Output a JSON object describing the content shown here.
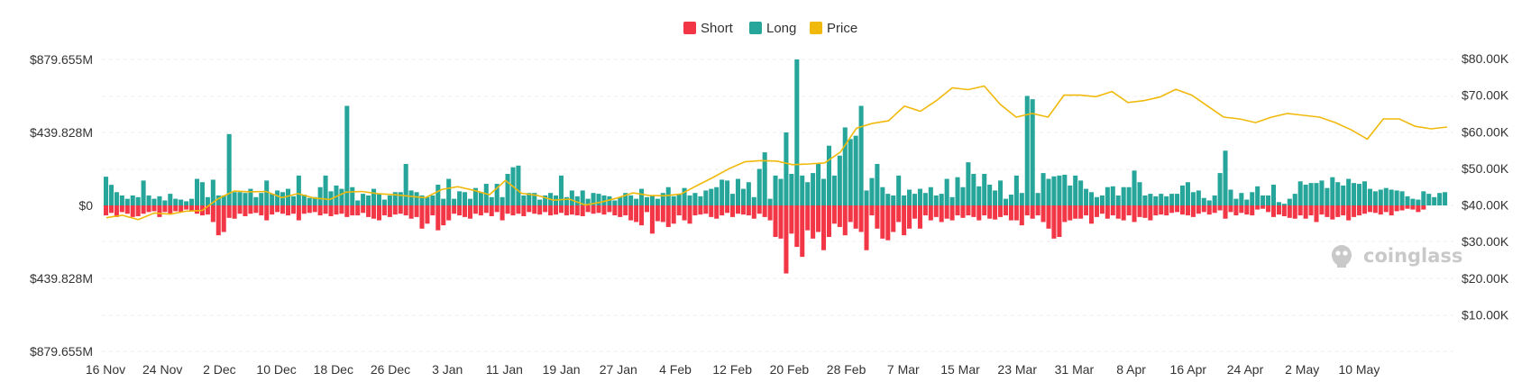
{
  "watermark": "coinglass",
  "colors": {
    "short": "#f23645",
    "long": "#26a69a",
    "price": "#f0b90b",
    "grid": "#eeeeee",
    "text": "#333333"
  },
  "chart_data": {
    "type": "bar",
    "legend": {
      "position": "top-center",
      "items": [
        "Short",
        "Long",
        "Price"
      ]
    },
    "grid": true,
    "x_tick_labels": [
      "16 Nov",
      "24 Nov",
      "2 Dec",
      "10 Dec",
      "18 Dec",
      "26 Dec",
      "3 Jan",
      "11 Jan",
      "19 Jan",
      "27 Jan",
      "4 Feb",
      "12 Feb",
      "20 Feb",
      "28 Feb",
      "7 Mar",
      "15 Mar",
      "23 Mar",
      "31 Mar",
      "8 Apr",
      "16 Apr",
      "24 Apr",
      "2 May",
      "10 May"
    ],
    "y_left": {
      "ticks": [
        "$879.655M",
        "$439.828M",
        "$0",
        "$439.828M",
        "$879.655M"
      ],
      "range_musd": [
        -879.655,
        879.655
      ]
    },
    "y_right": {
      "ticks": [
        "$80.00K",
        "$70.00K",
        "$60.00K",
        "$50.00K",
        "$40.00K",
        "$30.00K",
        "$20.00K",
        "$10.00K"
      ],
      "range_kusd": [
        0,
        80
      ]
    },
    "series": [
      {
        "name": "Long",
        "unit": "M USD",
        "values": [
          173,
          124,
          80,
          60,
          40,
          60,
          50,
          150,
          60,
          40,
          55,
          30,
          70,
          40,
          35,
          25,
          40,
          160,
          140,
          50,
          155,
          60,
          60,
          430,
          80,
          80,
          75,
          100,
          50,
          75,
          150,
          70,
          90,
          80,
          100,
          55,
          180,
          65,
          45,
          50,
          110,
          180,
          85,
          120,
          100,
          600,
          110,
          30,
          70,
          60,
          100,
          70,
          35,
          60,
          80,
          80,
          250,
          90,
          80,
          60,
          50,
          60,
          125,
          40,
          160,
          40,
          85,
          80,
          40,
          105,
          80,
          130,
          50,
          130,
          50,
          190,
          230,
          240,
          60,
          75,
          75,
          35,
          60,
          75,
          60,
          180,
          50,
          90,
          55,
          90,
          40,
          75,
          70,
          60,
          55,
          30,
          50,
          75,
          60,
          40,
          100,
          50,
          60,
          40,
          75,
          110,
          55,
          70,
          105,
          60,
          75,
          55,
          90,
          100,
          110,
          155,
          150,
          70,
          160,
          100,
          140,
          50,
          220,
          320,
          40,
          180,
          160,
          440,
          190,
          880,
          180,
          140,
          195,
          255,
          160,
          360,
          180,
          300,
          470,
          400,
          420,
          600,
          90,
          165,
          250,
          110,
          70,
          60,
          180,
          60,
          95,
          70,
          100,
          75,
          110,
          60,
          70,
          160,
          50,
          170,
          110,
          260,
          190,
          115,
          190,
          125,
          90,
          150,
          40,
          65,
          180,
          75,
          660,
          640,
          75,
          195,
          160,
          175,
          180,
          185,
          120,
          180,
          150,
          100,
          80,
          50,
          60,
          110,
          115,
          60,
          110,
          110,
          210,
          140,
          60,
          70,
          55,
          70,
          55,
          70,
          70,
          120,
          140,
          80,
          90,
          45,
          30,
          60,
          195,
          330,
          95,
          40,
          75,
          35,
          80,
          115,
          60,
          60,
          125,
          20,
          10,
          40,
          70,
          145,
          125,
          135,
          135,
          150,
          105,
          170,
          140,
          120,
          160,
          135,
          130,
          145,
          100,
          85,
          95,
          105,
          95,
          90,
          85,
          55,
          40,
          35,
          85,
          70,
          50,
          75,
          80
        ],
        "note": "Long values reconstructed from bar heights; approx"
      },
      {
        "name": "Short",
        "unit": "M USD",
        "values": [
          60,
          45,
          70,
          40,
          50,
          70,
          65,
          50,
          40,
          35,
          70,
          40,
          55,
          35,
          40,
          25,
          35,
          50,
          60,
          55,
          100,
          180,
          160,
          75,
          80,
          50,
          65,
          50,
          45,
          60,
          90,
          55,
          40,
          50,
          60,
          50,
          90,
          50,
          45,
          40,
          60,
          50,
          65,
          55,
          50,
          70,
          60,
          60,
          45,
          70,
          80,
          90,
          60,
          70,
          55,
          50,
          60,
          80,
          70,
          140,
          110,
          60,
          150,
          120,
          90,
          50,
          60,
          70,
          80,
          50,
          60,
          45,
          65,
          40,
          90,
          50,
          60,
          50,
          65,
          40,
          50,
          55,
          40,
          60,
          55,
          45,
          60,
          55,
          60,
          65,
          40,
          50,
          45,
          55,
          40,
          60,
          70,
          60,
          90,
          100,
          120,
          40,
          170,
          95,
          100,
          130,
          110,
          60,
          90,
          110,
          60,
          55,
          50,
          70,
          80,
          60,
          45,
          70,
          50,
          55,
          60,
          80,
          50,
          70,
          90,
          190,
          200,
          410,
          170,
          250,
          310,
          150,
          200,
          160,
          270,
          190,
          110,
          130,
          180,
          100,
          140,
          160,
          270,
          60,
          140,
          200,
          210,
          160,
          100,
          180,
          140,
          80,
          140,
          60,
          90,
          70,
          100,
          80,
          90,
          60,
          75,
          60,
          70,
          90,
          60,
          80,
          85,
          70,
          60,
          90,
          90,
          120,
          60,
          80,
          60,
          100,
          140,
          200,
          190,
          100,
          90,
          80,
          80,
          60,
          110,
          70,
          50,
          80,
          60,
          80,
          90,
          60,
          100,
          70,
          75,
          90,
          60,
          55,
          60,
          45,
          40,
          55,
          60,
          70,
          50,
          40,
          55,
          45,
          30,
          80,
          40,
          60,
          45,
          55,
          60,
          25,
          20,
          40,
          70,
          55,
          65,
          75,
          80,
          60,
          80,
          60,
          100,
          55,
          70,
          85,
          70,
          60,
          90,
          70,
          60,
          50,
          40,
          45,
          55,
          40,
          60,
          35,
          30,
          20,
          25,
          40,
          25
        ],
        "note": "Short values reconstructed from bar depths; approx"
      },
      {
        "name": "Price",
        "unit": "K USD",
        "dates": [
          "16 Nov",
          "18 Nov",
          "21 Nov",
          "24 Nov",
          "27 Nov",
          "30 Nov",
          "2 Dec",
          "4 Dec",
          "6 Dec",
          "8 Dec",
          "10 Dec",
          "12 Dec",
          "14 Dec",
          "16 Dec",
          "18 Dec",
          "20 Dec",
          "22 Dec",
          "24 Dec",
          "26 Dec",
          "28 Dec",
          "30 Dec",
          "1 Jan",
          "3 Jan",
          "5 Jan",
          "8 Jan",
          "11 Jan",
          "13 Jan",
          "15 Jan",
          "17 Jan",
          "19 Jan",
          "22 Jan",
          "25 Jan",
          "27 Jan",
          "30 Jan",
          "2 Feb",
          "4 Feb",
          "6 Feb",
          "8 Feb",
          "10 Feb",
          "12 Feb",
          "14 Feb",
          "16 Feb",
          "18 Feb",
          "20 Feb",
          "22 Feb",
          "24 Feb",
          "26 Feb",
          "28 Feb",
          "1 Mar",
          "3 Mar",
          "5 Mar",
          "7 Mar",
          "9 Mar",
          "11 Mar",
          "13 Mar",
          "15 Mar",
          "17 Mar",
          "19 Mar",
          "21 Mar",
          "23 Mar",
          "25 Mar",
          "27 Mar",
          "29 Mar",
          "31 Mar",
          "2 Apr",
          "4 Apr",
          "6 Apr",
          "8 Apr",
          "10 Apr",
          "12 Apr",
          "14 Apr",
          "16 Apr",
          "18 Apr",
          "20 Apr",
          "22 Apr",
          "24 Apr",
          "26 Apr",
          "28 Apr",
          "30 Apr",
          "2 May",
          "4 May",
          "6 May",
          "8 May",
          "10 May",
          "13 May"
        ],
        "values": [
          36.5,
          37.2,
          36.0,
          37.8,
          37.5,
          38.3,
          38.5,
          41.7,
          43.8,
          43.6,
          43.7,
          42.0,
          43.1,
          41.9,
          41.5,
          43.5,
          43.7,
          43.1,
          42.8,
          42.4,
          42.0,
          44.2,
          45.0,
          44.0,
          42.8,
          46.7,
          43.2,
          42.6,
          41.3,
          41.6,
          40.0,
          40.8,
          41.9,
          43.3,
          42.6,
          42.5,
          43.0,
          45.3,
          47.5,
          49.9,
          51.8,
          52.1,
          52.0,
          51.0,
          51.2,
          51.5,
          54.5,
          61.0,
          62.3,
          63.0,
          67.0,
          65.6,
          68.5,
          72.0,
          71.5,
          72.5,
          67.5,
          64.0,
          65.0,
          64.0,
          70.0,
          70.0,
          69.6,
          71.0,
          68.0,
          68.5,
          69.5,
          71.6,
          70.0,
          67.0,
          64.0,
          63.5,
          62.5,
          64.0,
          65.0,
          64.5,
          64.0,
          62.5,
          60.5,
          58.0,
          63.5,
          63.5,
          61.5,
          60.8,
          61.3
        ],
        "note": "Price line approx"
      }
    ]
  }
}
